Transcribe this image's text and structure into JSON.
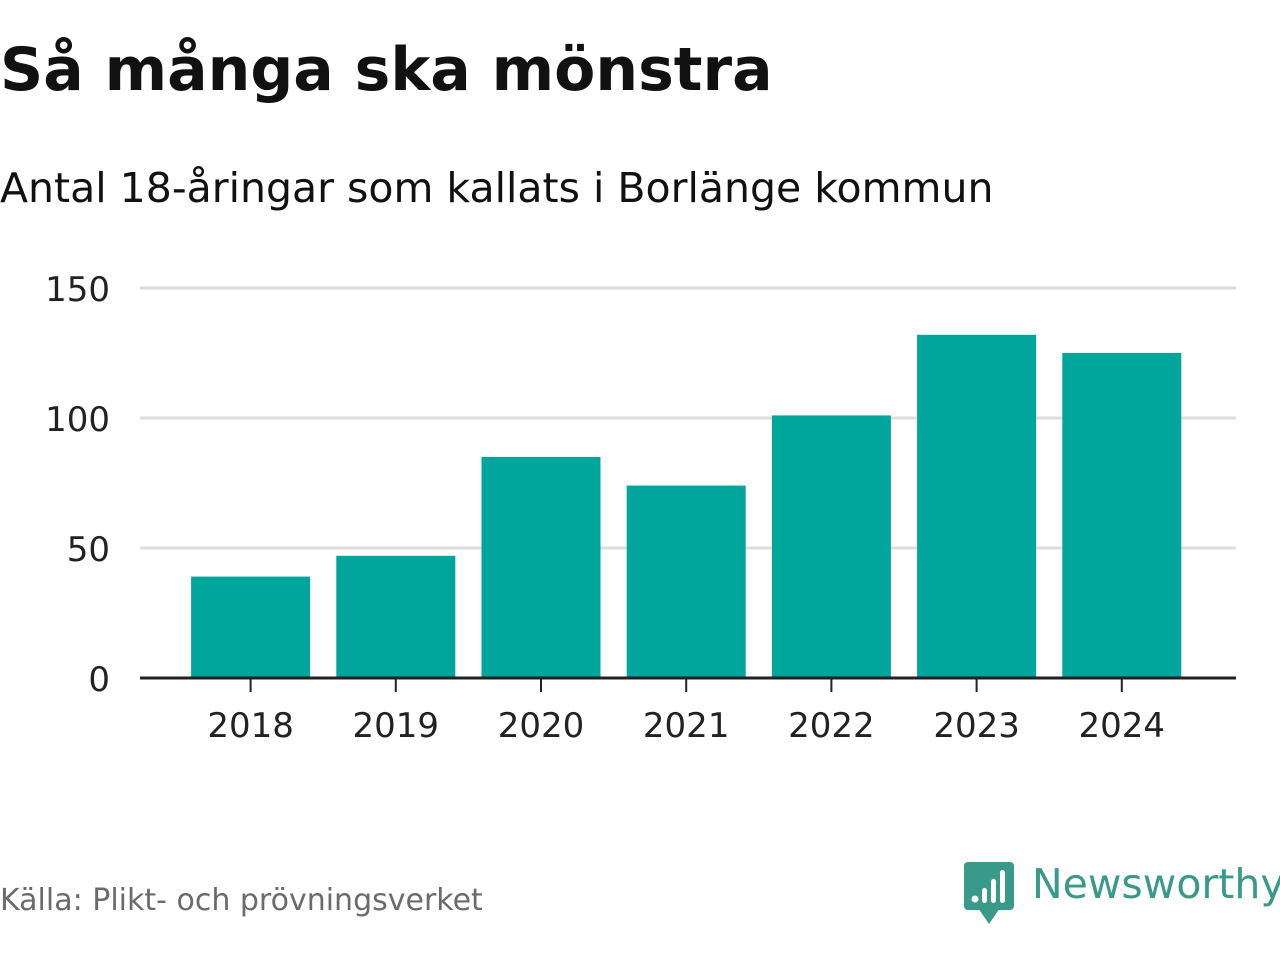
{
  "title": "Så många ska mönstra",
  "subtitle": "Antal 18-åringar som kallats i Borlänge kommun",
  "source": "Källa: Plikt- och prövningsverket",
  "logo": {
    "text": "Newsworthy",
    "icon": "newsworthy-logo-icon",
    "color": "#3a9a8a"
  },
  "colors": {
    "bar": "#00a59b",
    "grid": "#dddddd",
    "axis": "#222222",
    "tick_text": "#222222"
  },
  "chart_data": {
    "type": "bar",
    "title": "Så många ska mönstra",
    "subtitle": "Antal 18-åringar som kallats i Borlänge kommun",
    "categories": [
      "2018",
      "2019",
      "2020",
      "2021",
      "2022",
      "2023",
      "2024"
    ],
    "values": [
      39,
      47,
      85,
      74,
      101,
      132,
      125
    ],
    "xlabel": "",
    "ylabel": "",
    "ylim": [
      0,
      150
    ],
    "yticks": [
      0,
      50,
      100,
      150
    ],
    "ytick_labels": [
      "0",
      "50",
      "100",
      "150"
    ],
    "grid": true
  }
}
